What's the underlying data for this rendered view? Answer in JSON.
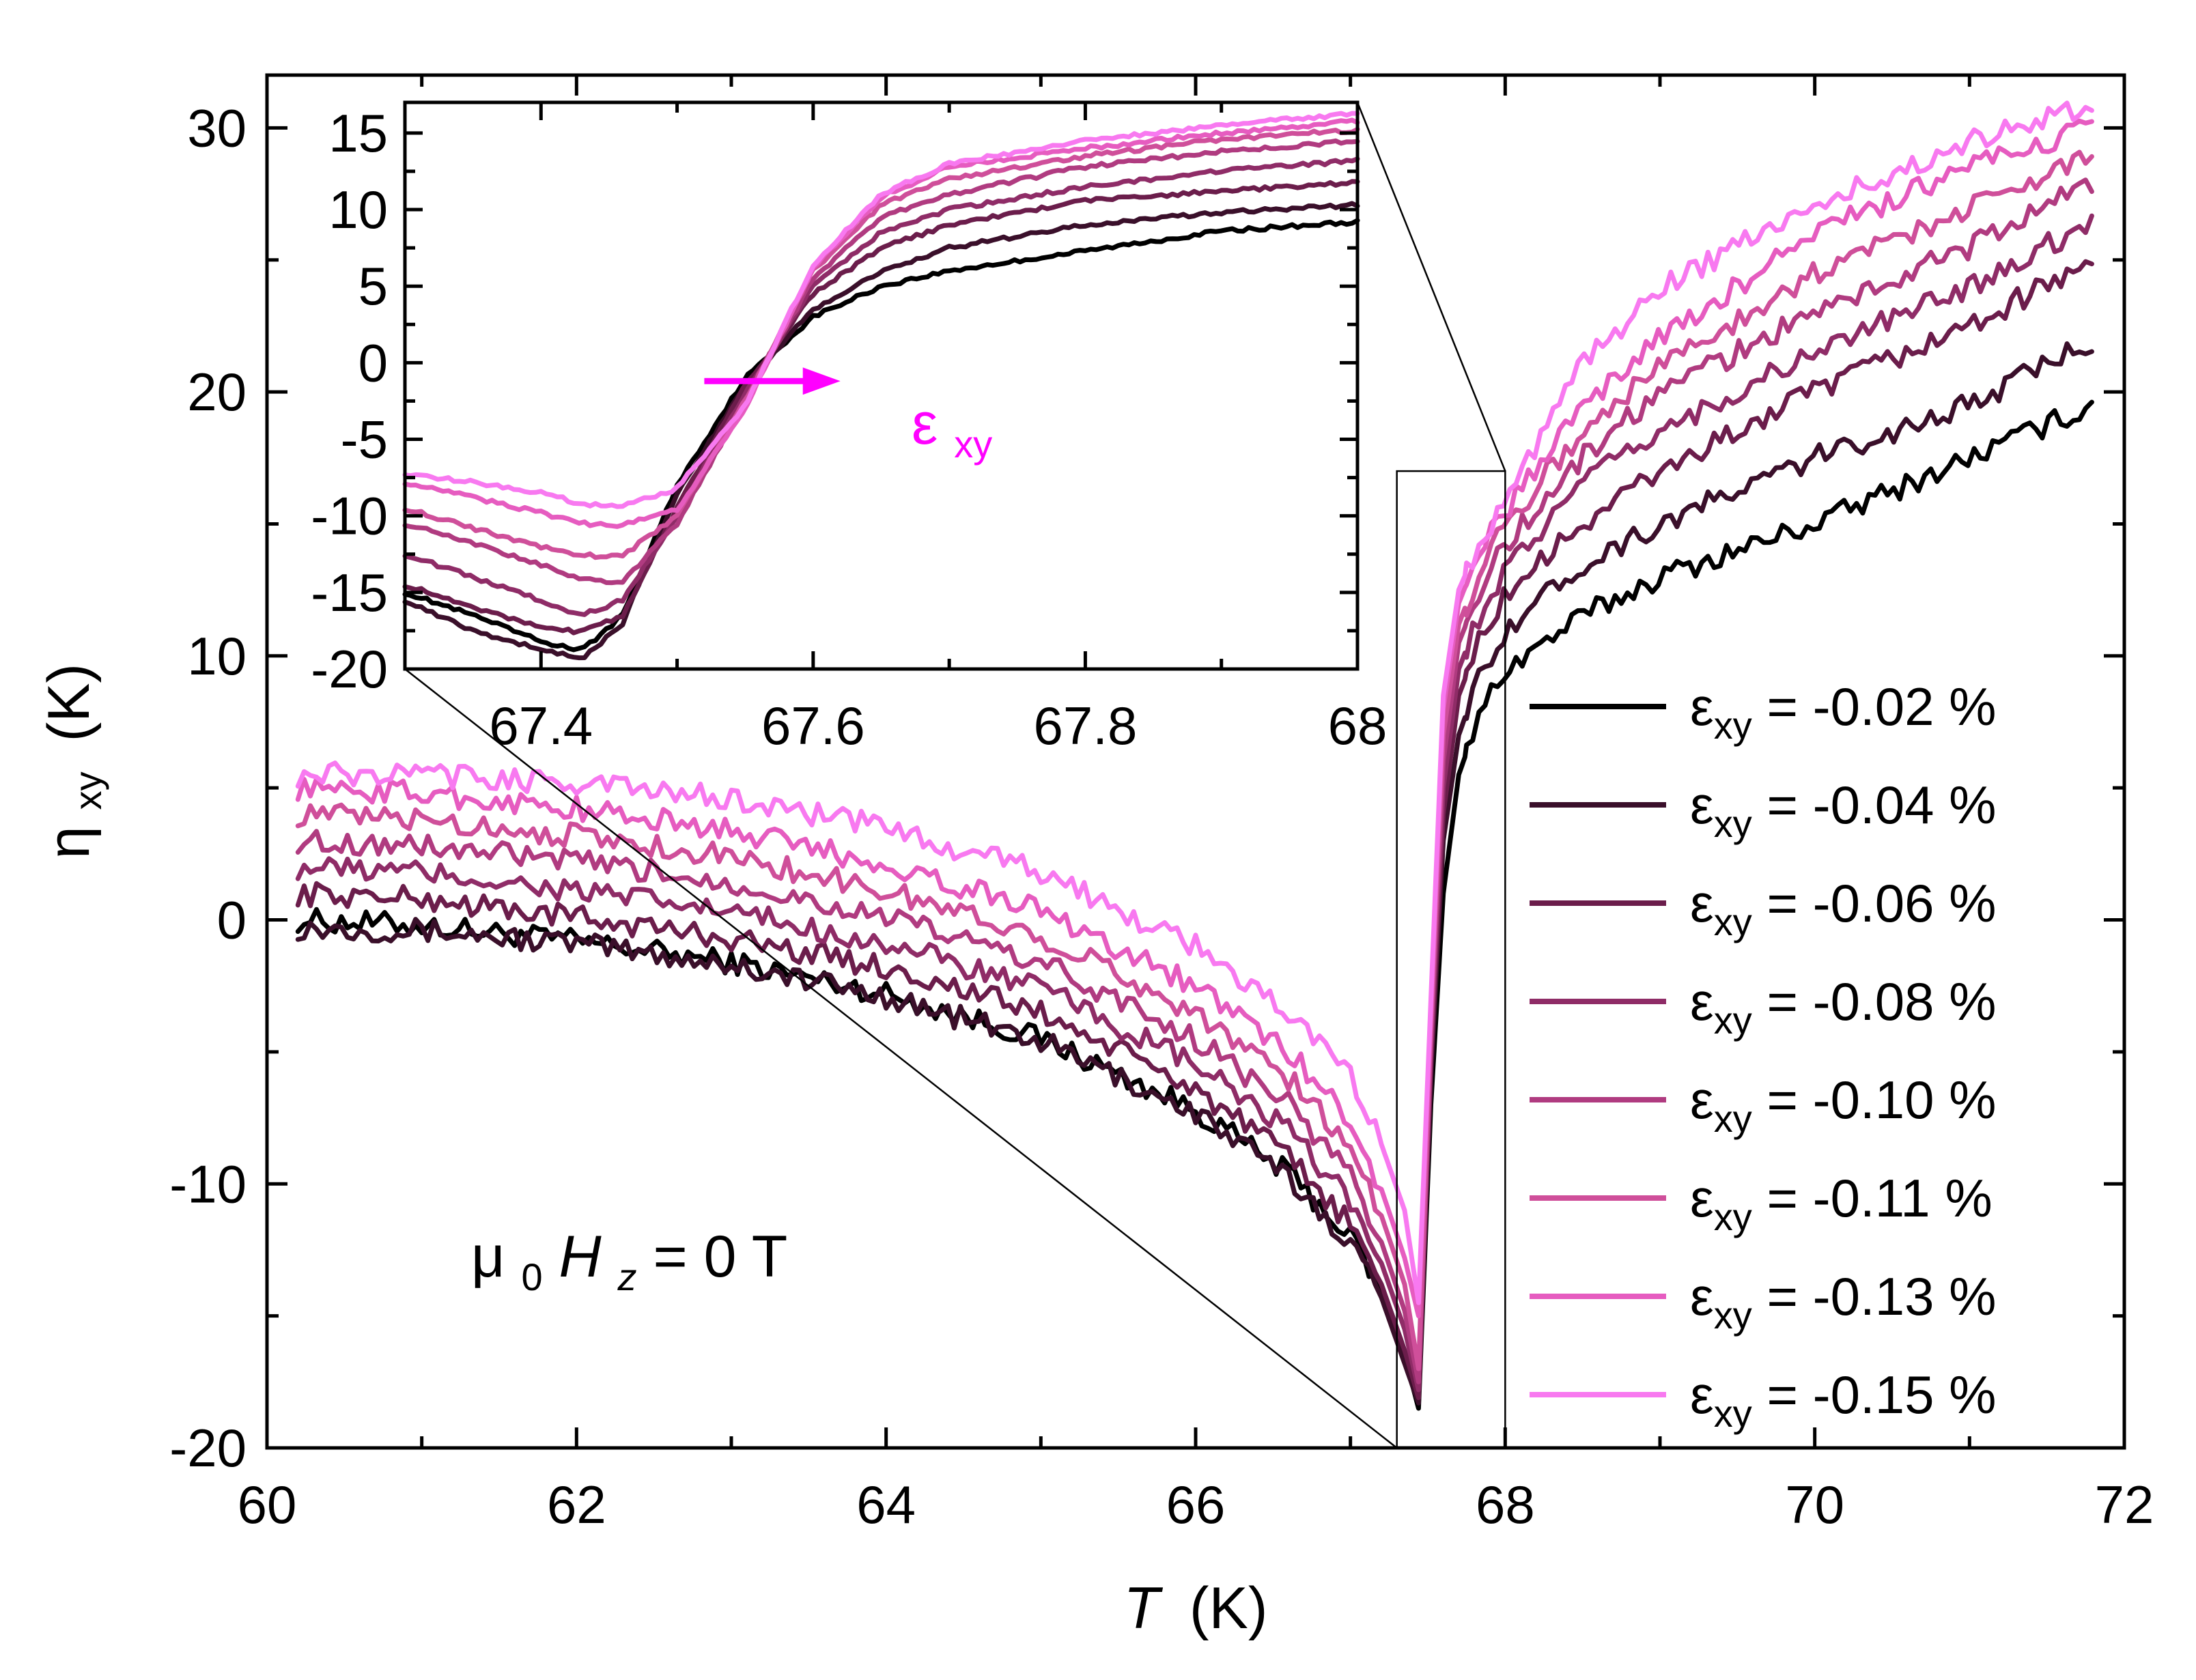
{
  "chart_data": [
    {
      "name": "main",
      "type": "line",
      "xlabel": "T",
      "xunit": "(K)",
      "ylabel_main": "η",
      "ylabel_sub": "xy",
      "yunit": "(K)",
      "xlim": [
        60,
        72
      ],
      "ylim": [
        -20,
        32
      ],
      "xticks": [
        60,
        62,
        64,
        66,
        68,
        70,
        72
      ],
      "xtick_labels": [
        "60",
        "62",
        "64",
        "66",
        "68",
        "70",
        "72"
      ],
      "yticks": [
        -20,
        -10,
        0,
        10,
        20,
        30
      ],
      "ytick_labels": [
        "-20",
        "-10",
        "0",
        "10",
        "20",
        "30"
      ],
      "annotation": {
        "prefix": "μ",
        "prefix_sub": "0",
        "italic": "H",
        "italic_sub": "z",
        "suffix": " = 0 T"
      },
      "legend_position": "bottom-right",
      "x_knots": [
        60.2,
        61,
        62,
        63,
        64,
        65,
        66,
        66.6,
        67,
        67.2,
        67.35,
        67.44,
        67.52,
        67.6,
        67.7,
        67.85,
        68,
        68.5,
        69,
        70,
        71,
        71.8
      ],
      "series": [
        {
          "name": "-0.02 %",
          "color": "#000000",
          "values": [
            0,
            -0.2,
            -0.8,
            -1.6,
            -2.8,
            -4.5,
            -7.2,
            -9.6,
            -12.0,
            -14.0,
            -16.5,
            -18.5,
            -7,
            1,
            5.5,
            8,
            9.5,
            11.5,
            13,
            15,
            17.5,
            19.5
          ]
        },
        {
          "name": "-0.04 %",
          "color": "#3a0f2a",
          "values": [
            -0.3,
            -0.4,
            -0.9,
            -1.7,
            -2.9,
            -4.6,
            -7.3,
            -9.8,
            -12.2,
            -14.3,
            -16.8,
            -18.3,
            -6,
            3,
            7,
            9.5,
            11,
            13.5,
            15,
            17.5,
            19.5,
            22
          ]
        },
        {
          "name": "-0.06 %",
          "color": "#6b1d4b",
          "values": [
            1,
            0.8,
            0.1,
            -0.7,
            -1.8,
            -3.5,
            -6.4,
            -9,
            -11.5,
            -13.8,
            -16.3,
            -18.1,
            -5.5,
            4,
            8.5,
            10.8,
            12.3,
            15,
            17,
            20,
            22.5,
            25
          ]
        },
        {
          "name": "-0.08 %",
          "color": "#8f2c67",
          "values": [
            2,
            1.8,
            1.1,
            0.3,
            -0.9,
            -2.6,
            -5.5,
            -8,
            -10.6,
            -13,
            -15.5,
            -17.8,
            -5,
            5,
            9.5,
            11.8,
            13.3,
            16.5,
            18.5,
            21.5,
            24,
            26.5
          ]
        },
        {
          "name": "-0.10 %",
          "color": "#b03b80",
          "values": [
            3,
            2.8,
            2.2,
            1.4,
            0.1,
            -1.6,
            -4.5,
            -7,
            -9.6,
            -12.2,
            -14.8,
            -17.5,
            -4.5,
            6,
            10.5,
            12.7,
            14.2,
            17.5,
            20,
            23,
            25.5,
            28
          ]
        },
        {
          "name": "-0.11 %",
          "color": "#cf4f9a",
          "values": [
            4,
            3.8,
            3.2,
            2.4,
            1.1,
            -0.6,
            -3.5,
            -6,
            -8.6,
            -11.2,
            -13.8,
            -17,
            -4,
            7,
            11.2,
            13.5,
            15,
            18.5,
            21,
            24.5,
            27,
            29
          ]
        },
        {
          "name": "-0.13 %",
          "color": "#e65cc0",
          "values": [
            5,
            4.8,
            4.2,
            3.4,
            2.1,
            0.4,
            -2.5,
            -5,
            -7.6,
            -10.2,
            -12.8,
            -15,
            -3.5,
            8,
            12,
            14.2,
            15.5,
            19.5,
            22,
            26,
            28.5,
            30
          ]
        },
        {
          "name": "-0.15 %",
          "color": "#f879f0",
          "values": [
            5.5,
            5.5,
            5.2,
            4.6,
            3.5,
            1.8,
            -1,
            -3.5,
            -6,
            -8.5,
            -11,
            -14.5,
            -3,
            8.5,
            12.5,
            14.5,
            16,
            21,
            24,
            27,
            29.5,
            31
          ]
        }
      ],
      "zoom_box": {
        "x_range": [
          67.3,
          68
        ],
        "y_range": [
          -20,
          17
        ]
      }
    },
    {
      "name": "inset",
      "type": "line",
      "xlim": [
        67.3,
        68
      ],
      "ylim": [
        -20,
        17
      ],
      "xticks": [
        67.4,
        67.6,
        67.8,
        68
      ],
      "xtick_labels": [
        "67.4",
        "67.6",
        "67.8",
        "68"
      ],
      "yticks": [
        -20,
        -15,
        -10,
        -5,
        0,
        5,
        10,
        15
      ],
      "ytick_labels": [
        "-20",
        "-15",
        "-10",
        "-5",
        "0",
        "5",
        "10",
        "15"
      ],
      "arrow_label": "ε",
      "arrow_label_sub": "xy",
      "arrow_color": "#ff00ff",
      "arrow_x": [
        67.52,
        67.62
      ],
      "arrow_y": -1.2,
      "x_knots": [
        67.3,
        67.35,
        67.4,
        67.43,
        67.46,
        67.5,
        67.55,
        67.6,
        67.65,
        67.7,
        67.8,
        67.9,
        68.0
      ],
      "series": [
        {
          "name": "-0.02 %",
          "color": "#000000",
          "values": [
            -15.0,
            -16.5,
            -18.2,
            -18.8,
            -16.5,
            -8,
            -1,
            3,
            5,
            6,
            7.3,
            8.6,
            9.2
          ]
        },
        {
          "name": "-0.04 %",
          "color": "#3a0f2a",
          "values": [
            -15.5,
            -17.5,
            -18.7,
            -19.4,
            -17,
            -8.5,
            -1.5,
            3.5,
            6,
            7.5,
            9,
            9.8,
            10.3
          ]
        },
        {
          "name": "-0.06 %",
          "color": "#6b1d4b",
          "values": [
            -14.5,
            -16,
            -17.2,
            -17.6,
            -16.5,
            -9.5,
            -1.5,
            4.5,
            7.5,
            9,
            10.6,
            11.2,
            11.8
          ]
        },
        {
          "name": "-0.08 %",
          "color": "#8f2c67",
          "values": [
            -12.5,
            -14,
            -15.5,
            -16.5,
            -15.5,
            -10,
            -2,
            5,
            8.5,
            10,
            11.5,
            12.5,
            13.2
          ]
        },
        {
          "name": "-0.10 %",
          "color": "#b03b80",
          "values": [
            -10.5,
            -11.8,
            -13.2,
            -14.2,
            -14.3,
            -10.5,
            -2.5,
            5.5,
            9.5,
            11,
            12.8,
            13.8,
            14.5
          ]
        },
        {
          "name": "-0.11 %",
          "color": "#cf4f9a",
          "values": [
            -9.5,
            -10.8,
            -12,
            -12.6,
            -12.6,
            -10,
            -2.5,
            6,
            10.3,
            12,
            13.5,
            14.6,
            15.2
          ]
        },
        {
          "name": "-0.13 %",
          "color": "#e65cc0",
          "values": [
            -7.8,
            -8.8,
            -9.8,
            -10.5,
            -10.6,
            -9.6,
            -3,
            6.2,
            10.8,
            12.8,
            14,
            15,
            15.8
          ]
        },
        {
          "name": "-0.15 %",
          "color": "#f879f0",
          "values": [
            -7.2,
            -7.8,
            -8.5,
            -9.2,
            -9.4,
            -8.2,
            -2.8,
            6.4,
            11,
            13,
            14.5,
            15.5,
            16.3
          ]
        }
      ]
    }
  ],
  "legend": [
    {
      "symbol": "ε",
      "sub": "xy",
      "text": " = -0.02 %",
      "color": "#000000"
    },
    {
      "symbol": "ε",
      "sub": "xy",
      "text": " = -0.04 %",
      "color": "#3a0f2a"
    },
    {
      "symbol": "ε",
      "sub": "xy",
      "text": " = -0.06 %",
      "color": "#6b1d4b"
    },
    {
      "symbol": "ε",
      "sub": "xy",
      "text": " = -0.08 %",
      "color": "#8f2c67"
    },
    {
      "symbol": "ε",
      "sub": "xy",
      "text": " = -0.10 %",
      "color": "#b03b80"
    },
    {
      "symbol": "ε",
      "sub": "xy",
      "text": " = -0.11 %",
      "color": "#cf4f9a"
    },
    {
      "symbol": "ε",
      "sub": "xy",
      "text": " = -0.13 %",
      "color": "#e65cc0"
    },
    {
      "symbol": "ε",
      "sub": "xy",
      "text": " = -0.15 %",
      "color": "#f879f0"
    }
  ]
}
